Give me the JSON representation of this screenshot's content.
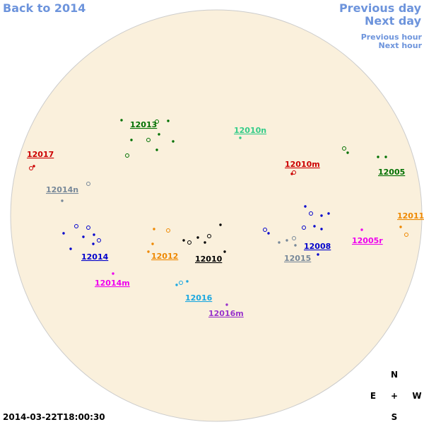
{
  "nav": {
    "back": "Back to 2014",
    "previous_day": "Previous day",
    "next_day": "Next day",
    "previous_hour": "Previous hour",
    "next_hour": "Next hour"
  },
  "regions": [
    {
      "label": "12017",
      "color": "#cc0000"
    },
    {
      "label": "12013",
      "color": "#007000"
    },
    {
      "label": "12010n",
      "color": "#33cc88"
    },
    {
      "label": "12010m",
      "color": "#cc0000"
    },
    {
      "label": "12005",
      "color": "#007000"
    },
    {
      "label": "12014n",
      "color": "#778899"
    },
    {
      "label": "12011",
      "color": "#ee8800"
    },
    {
      "label": "12014",
      "color": "#0000cc"
    },
    {
      "label": "12012",
      "color": "#ee8800"
    },
    {
      "label": "12010",
      "color": "#000000"
    },
    {
      "label": "12015",
      "color": "#778899"
    },
    {
      "label": "12008",
      "color": "#0000cc"
    },
    {
      "label": "12005r",
      "color": "#ee00ee"
    },
    {
      "label": "12014m",
      "color": "#ee00ee"
    },
    {
      "label": "12016",
      "color": "#1ca8e0"
    },
    {
      "label": "12016m",
      "color": "#9933cc"
    }
  ],
  "compass": {
    "north": "N",
    "east": "E",
    "center": "+",
    "west": "W",
    "south": "S"
  },
  "timestamp": "2014-03-22T18:00:30"
}
